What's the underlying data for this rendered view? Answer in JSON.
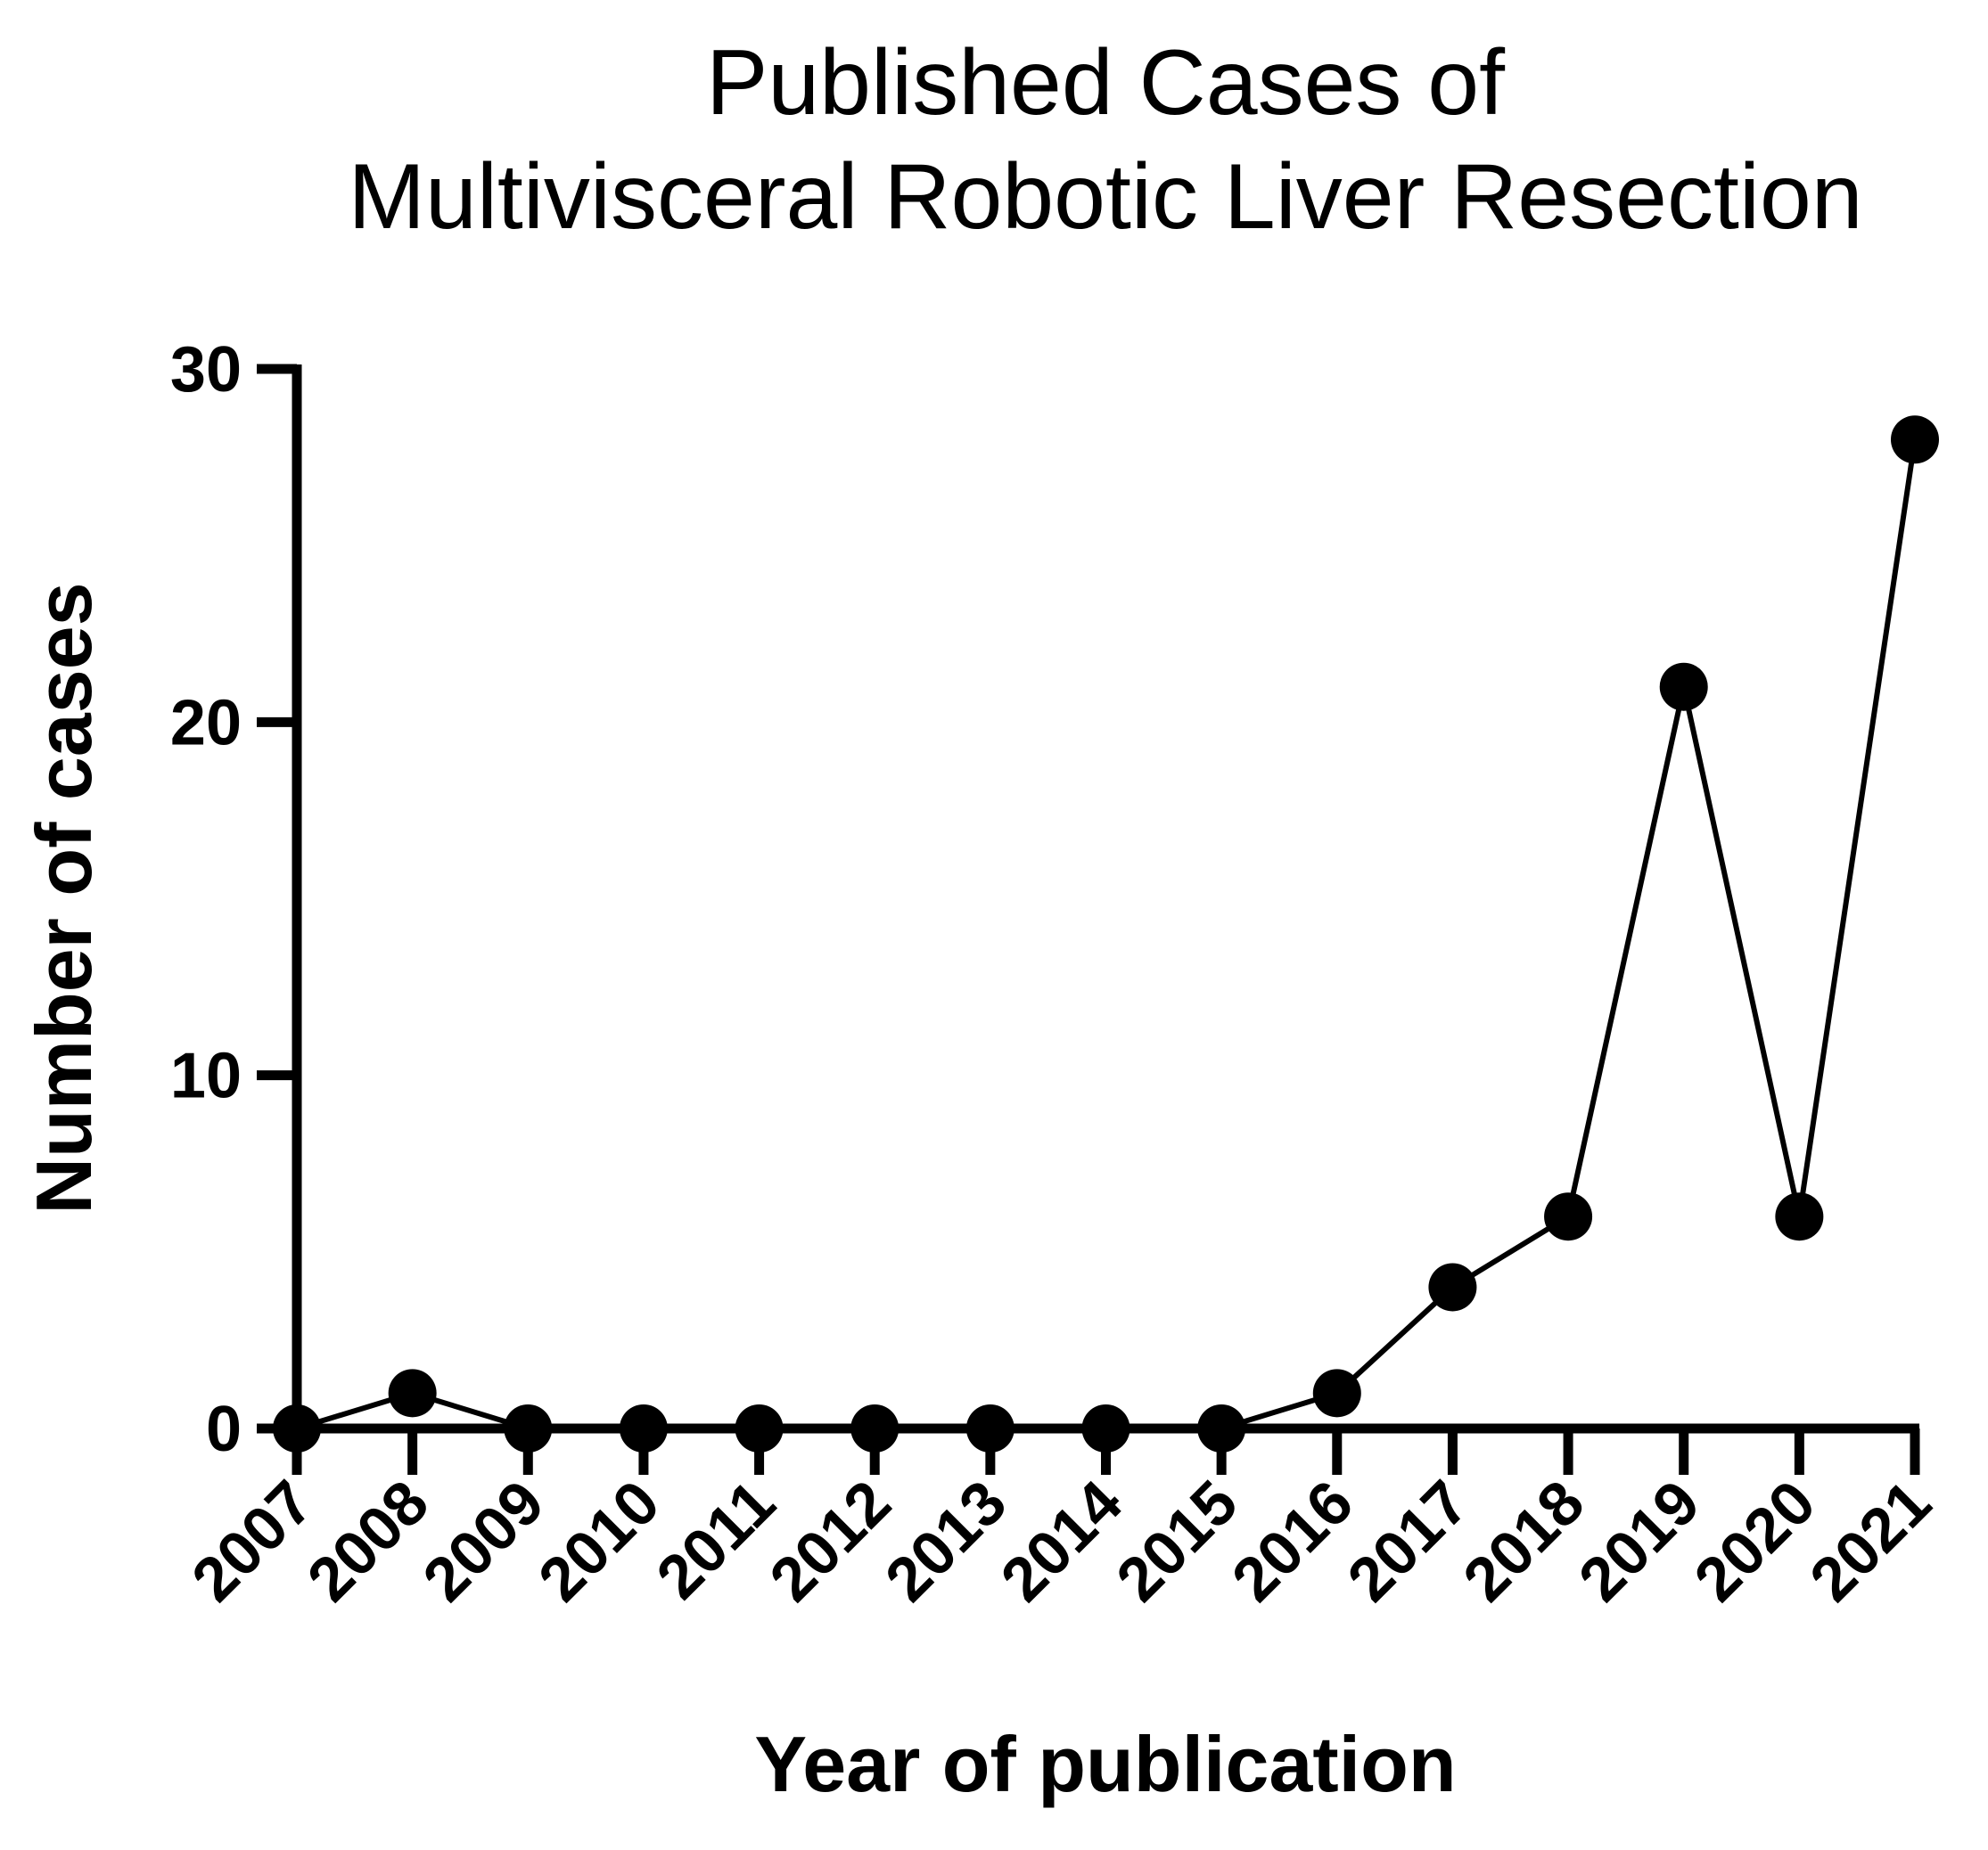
{
  "chart_data": {
    "type": "line",
    "title": [
      "Published Cases of",
      "Multivisceral Robotic Liver Resection"
    ],
    "x_label": "Year of publication",
    "y_label": "Number of cases",
    "categories": [
      "2007",
      "2008",
      "2009",
      "2010",
      "2011",
      "2012",
      "2013",
      "2014",
      "2015",
      "2016",
      "2017",
      "2018",
      "2019",
      "2020",
      "2021"
    ],
    "values": [
      0,
      1,
      0,
      0,
      0,
      0,
      0,
      0,
      0,
      1,
      4,
      6,
      21,
      6,
      28
    ],
    "color": "#000000",
    "ylim": [
      0,
      30
    ],
    "yticks": [
      0,
      10,
      20,
      30
    ],
    "grid": false
  }
}
